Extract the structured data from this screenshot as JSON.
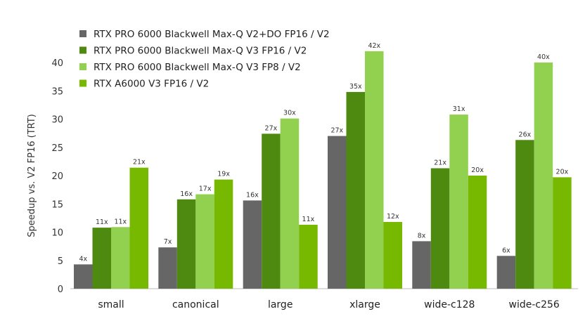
{
  "chart_data": {
    "type": "bar",
    "title": "",
    "xlabel": "",
    "ylabel": "Speedup vs. V2 FP16 (TRT)",
    "ylim": [
      0,
      44
    ],
    "yticks": [
      0,
      5,
      10,
      15,
      20,
      25,
      30,
      35,
      40
    ],
    "grid": false,
    "legend_position": "top-left",
    "categories": [
      "small",
      "canonical",
      "large",
      "xlarge",
      "wide-c128",
      "wide-c256"
    ],
    "series": [
      {
        "name": "RTX PRO 6000 Blackwell Max-Q V2+DO FP16 / V2",
        "color": "#666666",
        "values": [
          4.3,
          7.3,
          15.6,
          27.0,
          8.4,
          5.8
        ],
        "labels": [
          "4x",
          "7x",
          "16x",
          "27x",
          "8x",
          "6x"
        ]
      },
      {
        "name": "RTX PRO 6000 Blackwell Max-Q V3 FP16 / V2",
        "color": "#4f8a10",
        "values": [
          10.8,
          15.8,
          27.4,
          34.8,
          21.3,
          26.3
        ],
        "labels": [
          "11x",
          "16x",
          "27x",
          "35x",
          "21x",
          "26x"
        ]
      },
      {
        "name": "RTX PRO 6000 Blackwell Max-Q V3 FP8 / V2",
        "color": "#92d050",
        "values": [
          10.9,
          16.7,
          30.1,
          42.0,
          30.8,
          40.0
        ],
        "labels": [
          "11x",
          "17x",
          "30x",
          "42x",
          "31x",
          "40x"
        ]
      },
      {
        "name": "RTX A6000 V3 FP16 / V2",
        "color": "#76b900",
        "values": [
          21.4,
          19.3,
          11.3,
          11.8,
          20.0,
          19.7
        ],
        "labels": [
          "21x",
          "19x",
          "11x",
          "12x",
          "20x",
          "20x"
        ]
      }
    ]
  }
}
